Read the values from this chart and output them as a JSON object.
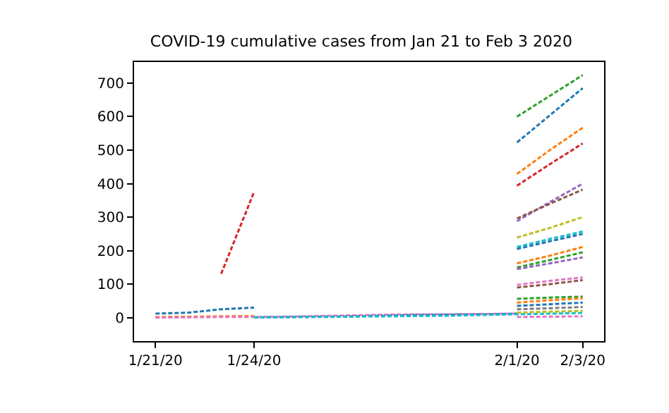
{
  "chart_data": {
    "type": "line",
    "title": "COVID-19 cumulative cases from Jan 21 to Feb 3 2020",
    "line_style": "dashed",
    "marker": "none",
    "xlim": [
      "2020-01-20T08:24",
      "2020-02-03T15:36"
    ],
    "xticks": [
      {
        "value": "2020-01-21",
        "label": "1/21/20"
      },
      {
        "value": "2020-01-24",
        "label": "1/24/20"
      },
      {
        "value": "2020-02-01",
        "label": "2/1/20"
      },
      {
        "value": "2020-02-03",
        "label": "2/3/20"
      }
    ],
    "ylim": [
      -70,
      763
    ],
    "yticks": [
      0,
      100,
      200,
      300,
      400,
      500,
      600,
      700
    ],
    "series": [
      {
        "color": "#1f77b4",
        "x": [
          "2020-01-21",
          "2020-01-22",
          "2020-01-23",
          "2020-01-24"
        ],
        "values": [
          12,
          15,
          25,
          30
        ]
      },
      {
        "color": "#d62728",
        "x": [
          "2020-01-23",
          "2020-01-24"
        ],
        "values": [
          131,
          375
        ]
      },
      {
        "color": "#ff7f0e",
        "x": [
          "2020-01-21",
          "2020-01-22",
          "2020-01-23",
          "2020-01-24"
        ],
        "values": [
          2,
          3,
          4,
          5
        ]
      },
      {
        "color": "#e377c2",
        "x": [
          "2020-01-21",
          "2020-01-22",
          "2020-01-23",
          "2020-01-24",
          "2020-01-25",
          "2020-01-26",
          "2020-01-27",
          "2020-01-28",
          "2020-01-29",
          "2020-01-30",
          "2020-01-31",
          "2020-02-01"
        ],
        "values": [
          0,
          1,
          2,
          2,
          3,
          5,
          7,
          9,
          10,
          10,
          11,
          12
        ]
      },
      {
        "color": "#1f77b4",
        "x": [
          "2020-01-24",
          "2020-01-25",
          "2020-01-26",
          "2020-01-27",
          "2020-01-28",
          "2020-01-29",
          "2020-01-30",
          "2020-01-31",
          "2020-02-01"
        ],
        "values": [
          1,
          2,
          3,
          4,
          6,
          8,
          9,
          10,
          12
        ]
      },
      {
        "color": "#17becf",
        "x": [
          "2020-01-24",
          "2020-01-25",
          "2020-01-26",
          "2020-01-27",
          "2020-01-28",
          "2020-01-29",
          "2020-01-30",
          "2020-01-31",
          "2020-02-01",
          "2020-02-02",
          "2020-02-03"
        ],
        "values": [
          1,
          1,
          2,
          3,
          4,
          5,
          6,
          8,
          10,
          12,
          14
        ]
      },
      {
        "color": "#2ca02c",
        "x": [
          "2020-02-01",
          "2020-02-02",
          "2020-02-03"
        ],
        "values": [
          600,
          662,
          724
        ]
      },
      {
        "color": "#1f77b4",
        "x": [
          "2020-02-01",
          "2020-02-02",
          "2020-02-03"
        ],
        "values": [
          523,
          604,
          685
        ]
      },
      {
        "color": "#ff7f0e",
        "x": [
          "2020-02-01",
          "2020-02-02",
          "2020-02-03"
        ],
        "values": [
          429,
          500,
          567
        ]
      },
      {
        "color": "#d62728",
        "x": [
          "2020-02-01",
          "2020-02-02",
          "2020-02-03"
        ],
        "values": [
          394,
          458,
          520
        ]
      },
      {
        "color": "#9467bd",
        "x": [
          "2020-02-01",
          "2020-02-02",
          "2020-02-03"
        ],
        "values": [
          288,
          345,
          400
        ]
      },
      {
        "color": "#8c564b",
        "x": [
          "2020-02-01",
          "2020-02-02",
          "2020-02-03"
        ],
        "values": [
          296,
          340,
          382
        ]
      },
      {
        "color": "#bcbd22",
        "x": [
          "2020-02-01",
          "2020-02-02",
          "2020-02-03"
        ],
        "values": [
          239,
          268,
          300
        ]
      },
      {
        "color": "#17becf",
        "x": [
          "2020-02-01",
          "2020-02-02",
          "2020-02-03"
        ],
        "values": [
          211,
          235,
          257
        ]
      },
      {
        "color": "#1f77b4",
        "x": [
          "2020-02-01",
          "2020-02-02",
          "2020-02-03"
        ],
        "values": [
          205,
          228,
          250
        ]
      },
      {
        "color": "#ff7f0e",
        "x": [
          "2020-02-01",
          "2020-02-02",
          "2020-02-03"
        ],
        "values": [
          162,
          185,
          211
        ]
      },
      {
        "color": "#2ca02c",
        "x": [
          "2020-02-01",
          "2020-02-02",
          "2020-02-03"
        ],
        "values": [
          150,
          172,
          195
        ]
      },
      {
        "color": "#9467bd",
        "x": [
          "2020-02-01",
          "2020-02-02",
          "2020-02-03"
        ],
        "values": [
          145,
          162,
          180
        ]
      },
      {
        "color": "#e377c2",
        "x": [
          "2020-02-01",
          "2020-02-02",
          "2020-02-03"
        ],
        "values": [
          98,
          110,
          120
        ]
      },
      {
        "color": "#8c564b",
        "x": [
          "2020-02-01",
          "2020-02-02",
          "2020-02-03"
        ],
        "values": [
          90,
          100,
          112
        ]
      },
      {
        "color": "#2ca02c",
        "x": [
          "2020-02-01",
          "2020-02-02",
          "2020-02-03"
        ],
        "values": [
          56,
          60,
          63
        ]
      },
      {
        "color": "#ff7f0e",
        "x": [
          "2020-02-01",
          "2020-02-02",
          "2020-02-03"
        ],
        "values": [
          45,
          52,
          58
        ]
      },
      {
        "color": "#1f77b4",
        "x": [
          "2020-02-01",
          "2020-02-02",
          "2020-02-03"
        ],
        "values": [
          35,
          40,
          45
        ]
      },
      {
        "color": "#7f7f7f",
        "x": [
          "2020-02-01",
          "2020-02-02",
          "2020-02-03"
        ],
        "values": [
          25,
          28,
          32
        ]
      },
      {
        "color": "#bcbd22",
        "x": [
          "2020-02-01",
          "2020-02-02",
          "2020-02-03"
        ],
        "values": [
          15,
          18,
          20
        ]
      },
      {
        "color": "#e377c2",
        "x": [
          "2020-02-01",
          "2020-02-02",
          "2020-02-03"
        ],
        "values": [
          2,
          3,
          4
        ]
      }
    ]
  }
}
